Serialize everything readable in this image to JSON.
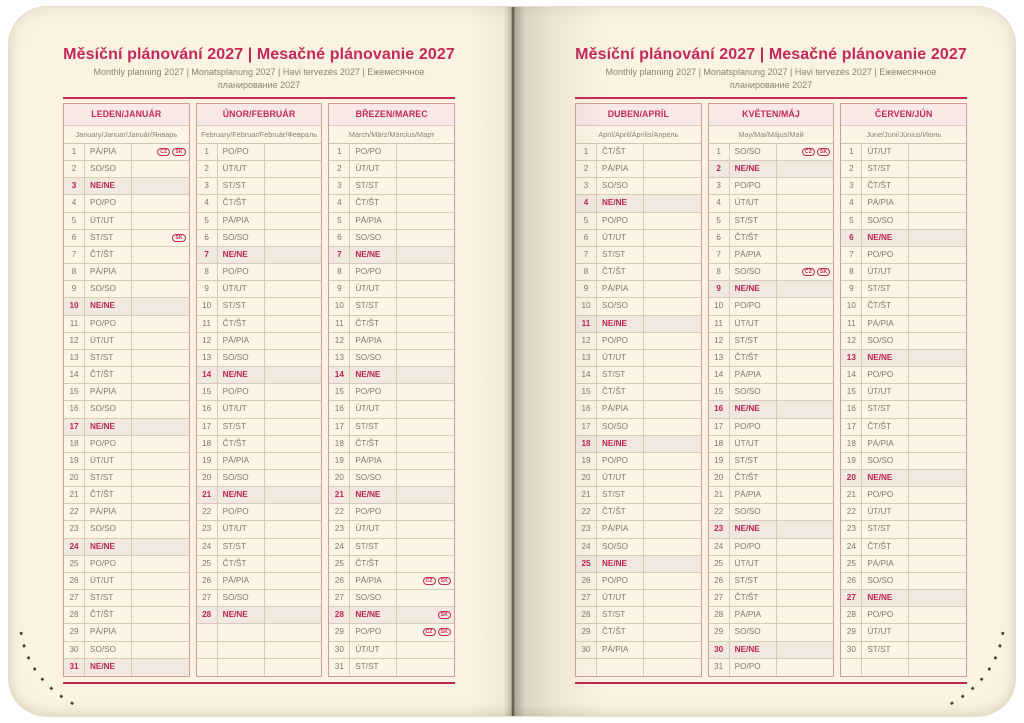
{
  "badge_labels": {
    "cz": "CZ",
    "sk": "SK"
  },
  "colors": {
    "accent": "#c4285a",
    "header_bg": "#f8e9e6",
    "sunday_row_bg": "#f1e8df",
    "page_bg": "#faf3e2",
    "grid_line": "#d2c5b4",
    "outer_border": "#d49aa1",
    "muted_text": "#8b8375",
    "stitch_dots": "#47423a"
  },
  "pages": [
    {
      "side": "left",
      "title": "Měsíční plánování 2027 | Mesačné plánovanie 2027",
      "subtitle": "Monthly planning 2027 | Monatsplanung 2027 | Havi tervezés 2027 | Ежемесячное планирование 2027",
      "months": [
        {
          "name": "LEDEN/JANUÁR",
          "subtitle": "January/Januar/Január/Январь",
          "days": [
            {
              "d": 1,
              "w": "PÁ/PIA",
              "b": [
                "CZ",
                "SK"
              ]
            },
            {
              "d": 2,
              "w": "SO/SO"
            },
            {
              "d": 3,
              "w": "NE/NE"
            },
            {
              "d": 4,
              "w": "PO/PO"
            },
            {
              "d": 5,
              "w": "ÚT/UT"
            },
            {
              "d": 6,
              "w": "ST/ST",
              "b": [
                "SK"
              ]
            },
            {
              "d": 7,
              "w": "ČT/ŠT"
            },
            {
              "d": 8,
              "w": "PÁ/PIA"
            },
            {
              "d": 9,
              "w": "SO/SO"
            },
            {
              "d": 10,
              "w": "NE/NE"
            },
            {
              "d": 11,
              "w": "PO/PO"
            },
            {
              "d": 12,
              "w": "ÚT/UT"
            },
            {
              "d": 13,
              "w": "ST/ST"
            },
            {
              "d": 14,
              "w": "ČT/ŠT"
            },
            {
              "d": 15,
              "w": "PÁ/PIA"
            },
            {
              "d": 16,
              "w": "SO/SO"
            },
            {
              "d": 17,
              "w": "NE/NE"
            },
            {
              "d": 18,
              "w": "PO/PO"
            },
            {
              "d": 19,
              "w": "ÚT/UT"
            },
            {
              "d": 20,
              "w": "ST/ST"
            },
            {
              "d": 21,
              "w": "ČT/ŠT"
            },
            {
              "d": 22,
              "w": "PÁ/PIA"
            },
            {
              "d": 23,
              "w": "SO/SO"
            },
            {
              "d": 24,
              "w": "NE/NE"
            },
            {
              "d": 25,
              "w": "PO/PO"
            },
            {
              "d": 26,
              "w": "ÚT/UT"
            },
            {
              "d": 27,
              "w": "ST/ST"
            },
            {
              "d": 28,
              "w": "ČT/ŠT"
            },
            {
              "d": 29,
              "w": "PÁ/PIA"
            },
            {
              "d": 30,
              "w": "SO/SO"
            },
            {
              "d": 31,
              "w": "NE/NE"
            }
          ]
        },
        {
          "name": "ÚNOR/FEBRUÁR",
          "subtitle": "February/Februar/Február/Февраль",
          "days": [
            {
              "d": 1,
              "w": "PO/PO"
            },
            {
              "d": 2,
              "w": "ÚT/UT"
            },
            {
              "d": 3,
              "w": "ST/ST"
            },
            {
              "d": 4,
              "w": "ČT/ŠT"
            },
            {
              "d": 5,
              "w": "PÁ/PIA"
            },
            {
              "d": 6,
              "w": "SO/SO"
            },
            {
              "d": 7,
              "w": "NE/NE"
            },
            {
              "d": 8,
              "w": "PO/PO"
            },
            {
              "d": 9,
              "w": "ÚT/UT"
            },
            {
              "d": 10,
              "w": "ST/ST"
            },
            {
              "d": 11,
              "w": "ČT/ŠT"
            },
            {
              "d": 12,
              "w": "PÁ/PIA"
            },
            {
              "d": 13,
              "w": "SO/SO"
            },
            {
              "d": 14,
              "w": "NE/NE"
            },
            {
              "d": 15,
              "w": "PO/PO"
            },
            {
              "d": 16,
              "w": "ÚT/UT"
            },
            {
              "d": 17,
              "w": "ST/ST"
            },
            {
              "d": 18,
              "w": "ČT/ŠT"
            },
            {
              "d": 19,
              "w": "PÁ/PIA"
            },
            {
              "d": 20,
              "w": "SO/SO"
            },
            {
              "d": 21,
              "w": "NE/NE"
            },
            {
              "d": 22,
              "w": "PO/PO"
            },
            {
              "d": 23,
              "w": "ÚT/UT"
            },
            {
              "d": 24,
              "w": "ST/ST"
            },
            {
              "d": 25,
              "w": "ČT/ŠT"
            },
            {
              "d": 26,
              "w": "PÁ/PIA"
            },
            {
              "d": 27,
              "w": "SO/SO"
            },
            {
              "d": 28,
              "w": "NE/NE"
            }
          ]
        },
        {
          "name": "BŘEZEN/MAREC",
          "subtitle": "March/März/Március/Март",
          "days": [
            {
              "d": 1,
              "w": "PO/PO"
            },
            {
              "d": 2,
              "w": "ÚT/UT"
            },
            {
              "d": 3,
              "w": "ST/ST"
            },
            {
              "d": 4,
              "w": "ČT/ŠT"
            },
            {
              "d": 5,
              "w": "PÁ/PIA"
            },
            {
              "d": 6,
              "w": "SO/SO"
            },
            {
              "d": 7,
              "w": "NE/NE"
            },
            {
              "d": 8,
              "w": "PO/PO"
            },
            {
              "d": 9,
              "w": "ÚT/UT"
            },
            {
              "d": 10,
              "w": "ST/ST"
            },
            {
              "d": 11,
              "w": "ČT/ŠT"
            },
            {
              "d": 12,
              "w": "PÁ/PIA"
            },
            {
              "d": 13,
              "w": "SO/SO"
            },
            {
              "d": 14,
              "w": "NE/NE"
            },
            {
              "d": 15,
              "w": "PO/PO"
            },
            {
              "d": 16,
              "w": "ÚT/UT"
            },
            {
              "d": 17,
              "w": "ST/ST"
            },
            {
              "d": 18,
              "w": "ČT/ŠT"
            },
            {
              "d": 19,
              "w": "PÁ/PIA"
            },
            {
              "d": 20,
              "w": "SO/SO"
            },
            {
              "d": 21,
              "w": "NE/NE"
            },
            {
              "d": 22,
              "w": "PO/PO"
            },
            {
              "d": 23,
              "w": "ÚT/UT"
            },
            {
              "d": 24,
              "w": "ST/ST"
            },
            {
              "d": 25,
              "w": "ČT/ŠT"
            },
            {
              "d": 26,
              "w": "PÁ/PIA",
              "b": [
                "CZ",
                "SK"
              ]
            },
            {
              "d": 27,
              "w": "SO/SO"
            },
            {
              "d": 28,
              "w": "NE/NE",
              "b": [
                "SK"
              ]
            },
            {
              "d": 29,
              "w": "PO/PO",
              "b": [
                "CZ",
                "SK"
              ]
            },
            {
              "d": 30,
              "w": "ÚT/UT"
            },
            {
              "d": 31,
              "w": "ST/ST"
            }
          ]
        }
      ]
    },
    {
      "side": "right",
      "title": "Měsíční plánování 2027 | Mesačné plánovanie 2027",
      "subtitle": "Monthly planning 2027 | Monatsplanung 2027 | Havi tervezés 2027 | Ежемесячное планирование 2027",
      "months": [
        {
          "name": "DUBEN/APRÍL",
          "subtitle": "April/April/Április/Апрель",
          "days": [
            {
              "d": 1,
              "w": "ČT/ŠT"
            },
            {
              "d": 2,
              "w": "PÁ/PIA"
            },
            {
              "d": 3,
              "w": "SO/SO"
            },
            {
              "d": 4,
              "w": "NE/NE"
            },
            {
              "d": 5,
              "w": "PO/PO"
            },
            {
              "d": 6,
              "w": "ÚT/UT"
            },
            {
              "d": 7,
              "w": "ST/ST"
            },
            {
              "d": 8,
              "w": "ČT/ŠT"
            },
            {
              "d": 9,
              "w": "PÁ/PIA"
            },
            {
              "d": 10,
              "w": "SO/SO"
            },
            {
              "d": 11,
              "w": "NE/NE"
            },
            {
              "d": 12,
              "w": "PO/PO"
            },
            {
              "d": 13,
              "w": "ÚT/UT"
            },
            {
              "d": 14,
              "w": "ST/ST"
            },
            {
              "d": 15,
              "w": "ČT/ŠT"
            },
            {
              "d": 16,
              "w": "PÁ/PIA"
            },
            {
              "d": 17,
              "w": "SO/SO"
            },
            {
              "d": 18,
              "w": "NE/NE"
            },
            {
              "d": 19,
              "w": "PO/PO"
            },
            {
              "d": 20,
              "w": "ÚT/UT"
            },
            {
              "d": 21,
              "w": "ST/ST"
            },
            {
              "d": 22,
              "w": "ČT/ŠT"
            },
            {
              "d": 23,
              "w": "PÁ/PIA"
            },
            {
              "d": 24,
              "w": "SO/SO"
            },
            {
              "d": 25,
              "w": "NE/NE"
            },
            {
              "d": 26,
              "w": "PO/PO"
            },
            {
              "d": 27,
              "w": "ÚT/UT"
            },
            {
              "d": 28,
              "w": "ST/ST"
            },
            {
              "d": 29,
              "w": "ČT/ŠT"
            },
            {
              "d": 30,
              "w": "PÁ/PIA"
            }
          ]
        },
        {
          "name": "KVĚTEN/MÁJ",
          "subtitle": "May/Mai/Május/Май",
          "days": [
            {
              "d": 1,
              "w": "SO/SO",
              "b": [
                "CZ",
                "SK"
              ]
            },
            {
              "d": 2,
              "w": "NE/NE"
            },
            {
              "d": 3,
              "w": "PO/PO"
            },
            {
              "d": 4,
              "w": "ÚT/UT"
            },
            {
              "d": 5,
              "w": "ST/ST"
            },
            {
              "d": 6,
              "w": "ČT/ŠT"
            },
            {
              "d": 7,
              "w": "PÁ/PIA"
            },
            {
              "d": 8,
              "w": "SO/SO",
              "b": [
                "CZ",
                "SK"
              ]
            },
            {
              "d": 9,
              "w": "NE/NE"
            },
            {
              "d": 10,
              "w": "PO/PO"
            },
            {
              "d": 11,
              "w": "ÚT/UT"
            },
            {
              "d": 12,
              "w": "ST/ST"
            },
            {
              "d": 13,
              "w": "ČT/ŠT"
            },
            {
              "d": 14,
              "w": "PÁ/PIA"
            },
            {
              "d": 15,
              "w": "SO/SO"
            },
            {
              "d": 16,
              "w": "NE/NE"
            },
            {
              "d": 17,
              "w": "PO/PO"
            },
            {
              "d": 18,
              "w": "ÚT/UT"
            },
            {
              "d": 19,
              "w": "ST/ST"
            },
            {
              "d": 20,
              "w": "ČT/ŠT"
            },
            {
              "d": 21,
              "w": "PÁ/PIA"
            },
            {
              "d": 22,
              "w": "SO/SO"
            },
            {
              "d": 23,
              "w": "NE/NE"
            },
            {
              "d": 24,
              "w": "PO/PO"
            },
            {
              "d": 25,
              "w": "ÚT/UT"
            },
            {
              "d": 26,
              "w": "ST/ST"
            },
            {
              "d": 27,
              "w": "ČT/ŠT"
            },
            {
              "d": 28,
              "w": "PÁ/PIA"
            },
            {
              "d": 29,
              "w": "SO/SO"
            },
            {
              "d": 30,
              "w": "NE/NE"
            },
            {
              "d": 31,
              "w": "PO/PO"
            }
          ]
        },
        {
          "name": "ČERVEN/JÚN",
          "subtitle": "June/Juni/Június/Июнь",
          "days": [
            {
              "d": 1,
              "w": "ÚT/UT"
            },
            {
              "d": 2,
              "w": "ST/ST"
            },
            {
              "d": 3,
              "w": "ČT/ŠT"
            },
            {
              "d": 4,
              "w": "PÁ/PIA"
            },
            {
              "d": 5,
              "w": "SO/SO"
            },
            {
              "d": 6,
              "w": "NE/NE"
            },
            {
              "d": 7,
              "w": "PO/PO"
            },
            {
              "d": 8,
              "w": "ÚT/UT"
            },
            {
              "d": 9,
              "w": "ST/ST"
            },
            {
              "d": 10,
              "w": "ČT/ŠT"
            },
            {
              "d": 11,
              "w": "PÁ/PIA"
            },
            {
              "d": 12,
              "w": "SO/SO"
            },
            {
              "d": 13,
              "w": "NE/NE"
            },
            {
              "d": 14,
              "w": "PO/PO"
            },
            {
              "d": 15,
              "w": "ÚT/UT"
            },
            {
              "d": 16,
              "w": "ST/ST"
            },
            {
              "d": 17,
              "w": "ČT/ŠT"
            },
            {
              "d": 18,
              "w": "PÁ/PIA"
            },
            {
              "d": 19,
              "w": "SO/SO"
            },
            {
              "d": 20,
              "w": "NE/NE"
            },
            {
              "d": 21,
              "w": "PO/PO"
            },
            {
              "d": 22,
              "w": "ÚT/UT"
            },
            {
              "d": 23,
              "w": "ST/ST"
            },
            {
              "d": 24,
              "w": "ČT/ŠT"
            },
            {
              "d": 25,
              "w": "PÁ/PIA"
            },
            {
              "d": 26,
              "w": "SO/SO"
            },
            {
              "d": 27,
              "w": "NE/NE"
            },
            {
              "d": 28,
              "w": "PO/PO"
            },
            {
              "d": 29,
              "w": "ÚT/UT"
            },
            {
              "d": 30,
              "w": "ST/ST"
            }
          ]
        }
      ]
    }
  ]
}
